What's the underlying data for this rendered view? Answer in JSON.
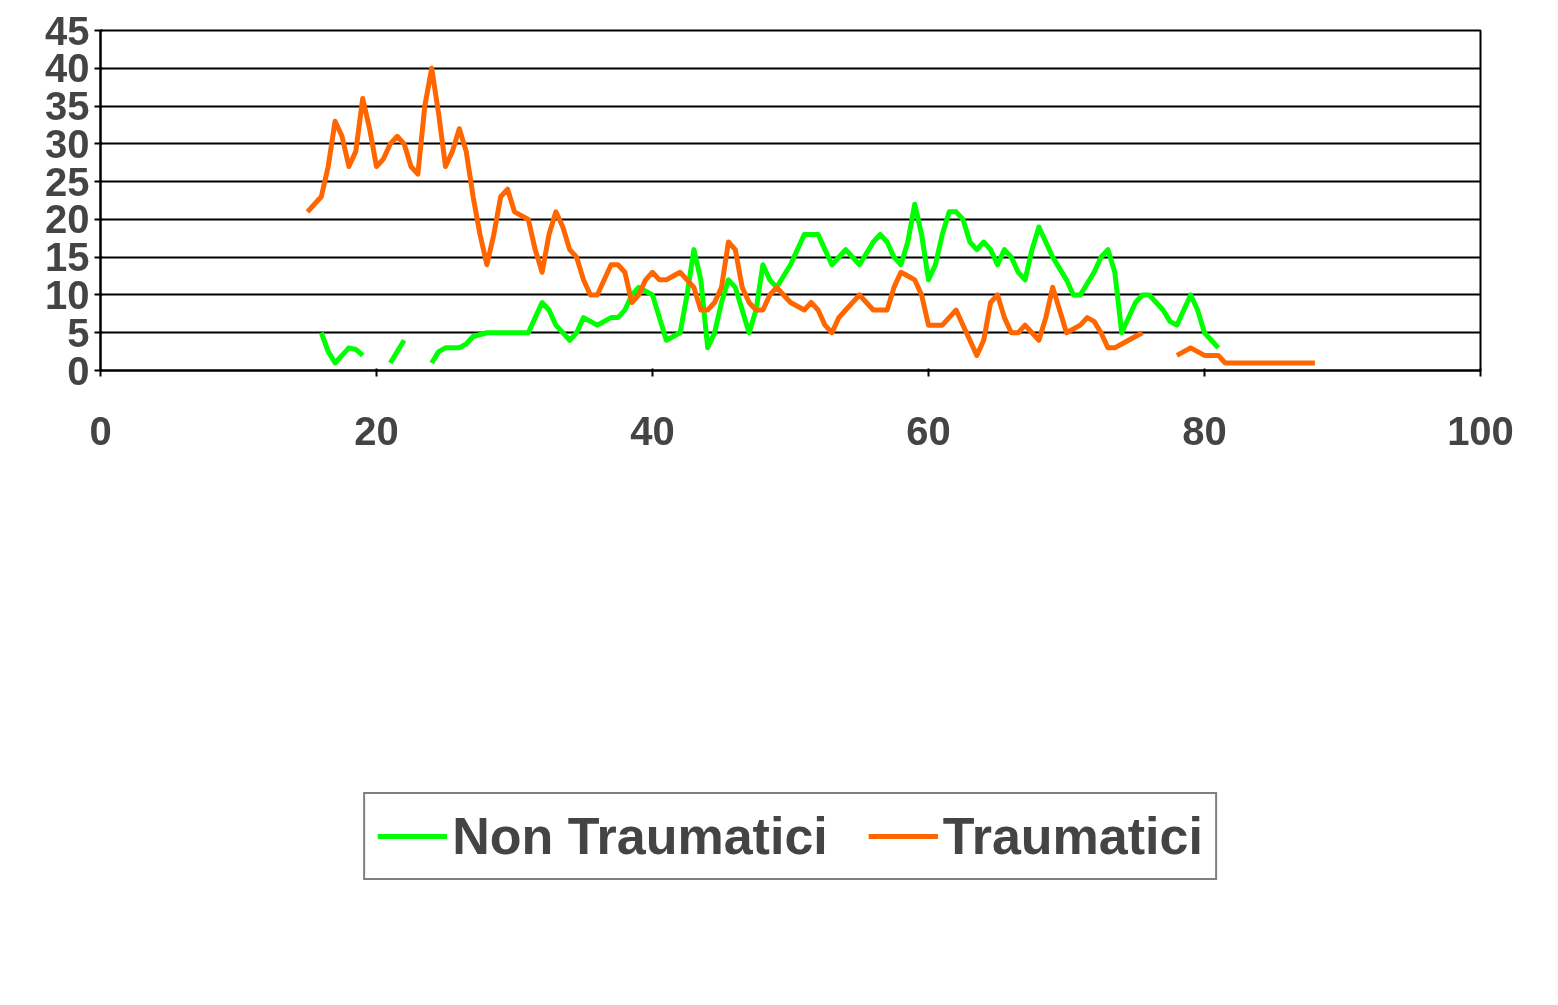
{
  "chart_data": {
    "type": "line",
    "xlim": [
      0,
      100
    ],
    "ylim": [
      0,
      45
    ],
    "xticks": [
      0,
      20,
      40,
      60,
      80,
      100
    ],
    "yticks": [
      0,
      5,
      10,
      15,
      20,
      25,
      30,
      35,
      40,
      45
    ],
    "grid": "y",
    "legend": "bottom",
    "marker": "none",
    "line_style": "solid",
    "series": [
      {
        "name": "Non Traumatici",
        "color": "#00ff00",
        "x": [
          16,
          16.5,
          17,
          17.5,
          18,
          18.5,
          19,
          20,
          21,
          22,
          23,
          24,
          24.5,
          25,
          26,
          26.5,
          27,
          28,
          30,
          30.5,
          31,
          31.5,
          32,
          32.5,
          33,
          34,
          34.5,
          35,
          36,
          37,
          37.5,
          38,
          38.5,
          39,
          40,
          40.5,
          41,
          41.5,
          42,
          42.5,
          43,
          43.5,
          44,
          44.5,
          45,
          45.5,
          46,
          46.5,
          47,
          47.5,
          48,
          48.5,
          49,
          50,
          50.5,
          51,
          52,
          52.5,
          53,
          54,
          55,
          56,
          56.5,
          57,
          57.5,
          58,
          58.5,
          59,
          59.5,
          60,
          60.5,
          61,
          61.5,
          62,
          62.5,
          63,
          63.5,
          64,
          64.5,
          65,
          65.5,
          66,
          66.5,
          67,
          67.5,
          68,
          68.5,
          69,
          70,
          70.5,
          71,
          72,
          72.5,
          73,
          73.5,
          74,
          75,
          75.5,
          76,
          76.5,
          77,
          77.5,
          78,
          78.5,
          79,
          79.5,
          80,
          80.5,
          81
        ],
        "values": [
          5,
          2.5,
          1,
          2,
          3,
          2.8,
          2,
          null,
          1,
          4,
          null,
          1,
          2.5,
          3,
          3,
          3.5,
          4.5,
          5,
          5,
          5,
          5,
          7,
          9,
          8,
          6,
          4,
          5,
          7,
          6,
          7,
          7,
          8,
          10,
          11,
          10,
          7,
          4,
          4.5,
          5,
          10,
          16,
          12,
          3,
          5,
          9,
          12,
          11,
          8,
          5,
          8,
          14,
          12,
          11,
          14,
          16,
          18,
          18,
          16,
          14,
          16,
          14,
          17,
          18,
          17,
          15,
          14,
          17,
          22,
          18,
          12,
          14,
          18,
          21,
          21,
          20,
          17,
          16,
          17,
          16,
          14,
          16,
          15,
          13,
          12,
          16,
          19,
          17,
          15,
          12,
          10,
          10,
          13,
          15,
          16,
          13,
          5,
          9,
          10,
          10,
          9,
          8,
          6.5,
          6,
          8,
          10,
          8,
          5,
          4,
          3
        ]
      },
      {
        "name": "Traumatici",
        "color": "#ff6600",
        "x": [
          15,
          15.5,
          16,
          16.5,
          17,
          17.5,
          18,
          18.5,
          19,
          19.5,
          20,
          20.5,
          21,
          21.5,
          22,
          22.5,
          23,
          23.5,
          24,
          24.5,
          25,
          25.5,
          26,
          26.5,
          27,
          27.5,
          28,
          28.5,
          29,
          29.5,
          30,
          30.5,
          31,
          31.5,
          32,
          32.5,
          33,
          33.5,
          34,
          34.5,
          35,
          35.5,
          36,
          36.5,
          37,
          37.5,
          38,
          38.5,
          39,
          39.5,
          40,
          40.5,
          41,
          41.5,
          42,
          42.5,
          43,
          43.5,
          44,
          44.5,
          45,
          45.5,
          46,
          46.5,
          47,
          47.5,
          48,
          48.5,
          49,
          49.5,
          50,
          51,
          51.5,
          52,
          52.5,
          53,
          53.5,
          54,
          54.5,
          55,
          55.5,
          56,
          57,
          57.5,
          58,
          58.5,
          59,
          59.5,
          60,
          61,
          61.5,
          62,
          62.5,
          63,
          63.5,
          64,
          64.5,
          65,
          65.5,
          66,
          66.5,
          67,
          67.5,
          68,
          68.5,
          69,
          69.5,
          70,
          71,
          71.5,
          72,
          72.5,
          73,
          73.5,
          74,
          75,
          75.5,
          77,
          78,
          78.5,
          79,
          80,
          81,
          81.5,
          82,
          88
        ],
        "values": [
          21,
          22,
          23,
          27,
          33,
          31,
          27,
          29,
          36,
          32,
          27,
          28,
          30,
          31,
          30,
          27,
          26,
          35,
          40,
          34,
          27,
          29,
          32,
          29,
          23,
          18,
          14,
          18,
          23,
          24,
          21,
          20.5,
          20,
          16,
          13,
          18,
          21,
          19,
          16,
          15,
          12,
          10,
          10,
          12,
          14,
          14,
          13,
          9,
          10,
          12,
          13,
          12,
          12,
          12.5,
          13,
          12,
          11,
          8,
          8,
          9,
          11,
          17,
          16,
          11,
          9,
          8,
          8,
          10,
          11,
          10,
          9,
          8,
          9,
          8,
          6,
          5,
          7,
          8,
          9,
          10,
          9,
          8,
          8,
          11,
          13,
          12.5,
          12,
          10,
          6,
          6,
          7,
          8,
          6,
          4,
          2,
          4,
          9,
          10,
          7,
          5,
          5,
          6,
          5,
          4,
          7,
          11,
          8,
          5,
          6,
          7,
          6.5,
          5,
          3,
          3,
          3.5,
          4.5,
          5,
          null,
          2,
          2.5,
          3,
          2,
          2,
          1,
          1,
          1
        ]
      }
    ]
  }
}
